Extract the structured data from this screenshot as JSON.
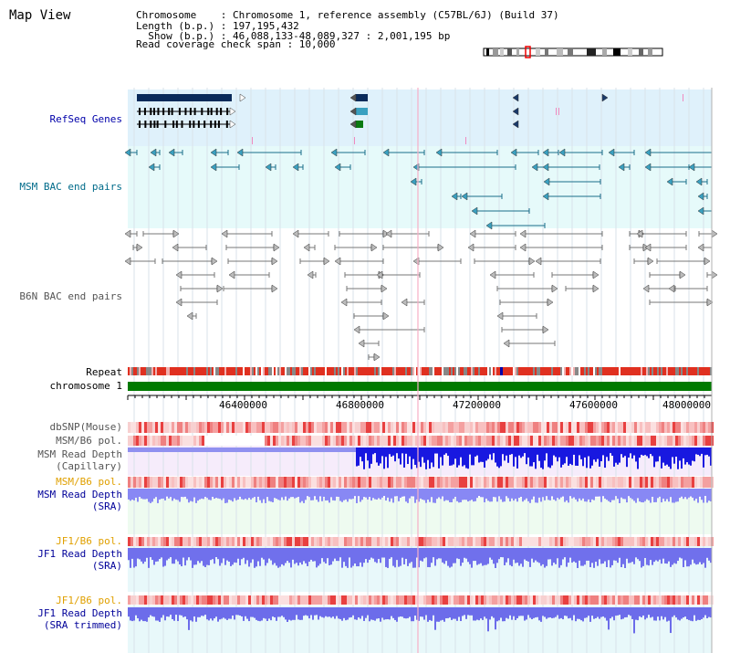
{
  "title": "Map View",
  "header": {
    "chromosome_label": "Chromosome    : Chromosome 1, reference assembly (C57BL/6J) (Build 37)",
    "length_label": "Length (b.p.) : 197,195,432",
    "show_label": "  Show (b.p.) : 46,088,133-48,089,327 : 2,001,195 bp",
    "coverage_label": "Read coverage check span : 10,000"
  },
  "tracks": {
    "refseq": "RefSeq Genes",
    "msm_bac": "MSM BAC end pairs",
    "b6n_bac": "B6N BAC end pairs",
    "repeat": "Repeat",
    "chromosome": "chromosome 1",
    "dbsnp": "dbSNP(Mouse)",
    "msm_b6_pol_1": "MSM/B6 pol.",
    "msm_read_depth_cap_1": "MSM Read Depth",
    "msm_read_depth_cap_2": "(Capillary)",
    "msm_b6_pol_2": "MSM/B6 pol.",
    "msm_read_depth_sra_1": "MSM Read Depth",
    "msm_read_depth_sra_2": "(SRA)",
    "jf1_b6_pol_1": "JF1/B6 pol.",
    "jf1_read_depth_1": "JF1 Read Depth",
    "jf1_read_depth_2": "(SRA)",
    "jf1_b6_pol_2": "JF1/B6 pol.",
    "jf1_read_depth_trim_1": "JF1 Read Depth",
    "jf1_read_depth_trim_2": "(SRA trimmed)"
  },
  "axis": {
    "ticks": [
      "46400000",
      "46800000",
      "47200000",
      "47600000",
      "48000000"
    ]
  },
  "colors": {
    "refseq_bg": "#dff1fb",
    "bac_bg": "#e6fafa",
    "repeat": "#e03020",
    "chromosome": "#007a00",
    "read_depth": "#2020e0",
    "light_depth": "#8080ff",
    "pol": "#f0a0a0"
  }
}
